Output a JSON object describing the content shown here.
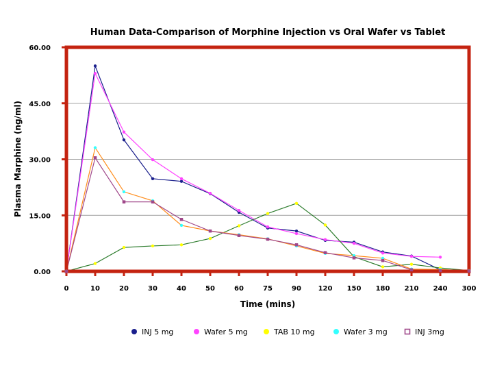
{
  "chart_data": {
    "type": "line",
    "title": "Human Data-Comparison of Morphine Injection vs Oral Wafer vs Tablet",
    "xlabel": "Time (mins)",
    "ylabel": "Plasma Marphine (ng/ml)",
    "x": [
      "0",
      "10",
      "20",
      "30",
      "40",
      "50",
      "60",
      "75",
      "90",
      "120",
      "150",
      "180",
      "210",
      "240",
      "300"
    ],
    "ylim": [
      0,
      60
    ],
    "yticks": [
      "0.00",
      "15.00",
      "30.00",
      "45.00",
      "60.00"
    ],
    "grid": true,
    "legend_position": "bottom",
    "colors": {
      "frame": "#c42310",
      "grid": "#a0a0a0"
    },
    "series": [
      {
        "name": "INJ 5 mg",
        "color": "#1a1f8c",
        "marker": "#1a1f8c",
        "values": [
          0,
          55,
          35.2,
          24.8,
          24.1,
          20.8,
          15.8,
          11.6,
          10.8,
          8.3,
          7.8,
          5.2,
          4.1,
          0.4,
          0.2
        ]
      },
      {
        "name": "Wafer 5 mg",
        "color": "#ff44ff",
        "marker": "#ff44ff",
        "values": [
          0,
          53,
          37.3,
          29.9,
          24.8,
          20.9,
          16.3,
          11.9,
          10.1,
          8.5,
          7.5,
          4.9,
          4.0,
          3.8,
          null
        ]
      },
      {
        "name": "TAB 10 mg",
        "color": "#2e7d2e",
        "marker": "#ffff00",
        "values": [
          0,
          2.1,
          6.4,
          6.8,
          7.1,
          8.8,
          12.2,
          15.5,
          18.2,
          12.4,
          3.9,
          1.2,
          1.9,
          0.9,
          0.2
        ]
      },
      {
        "name": "Wafer 3 mg",
        "color": "#ff8c1a",
        "marker": "#33ffff",
        "values": [
          0,
          33.1,
          21.3,
          18.9,
          12.3,
          10.8,
          9.8,
          8.7,
          6.8,
          4.8,
          4.2,
          3.5,
          0.6,
          0.5,
          0.1
        ]
      },
      {
        "name": "INJ 3mg",
        "color": "#a0488a",
        "marker": "#a0488a",
        "values": [
          0,
          30.4,
          18.6,
          18.6,
          13.9,
          10.8,
          9.6,
          8.6,
          7.1,
          5.0,
          3.6,
          2.9,
          0.4,
          0.2,
          0.1
        ]
      }
    ]
  }
}
